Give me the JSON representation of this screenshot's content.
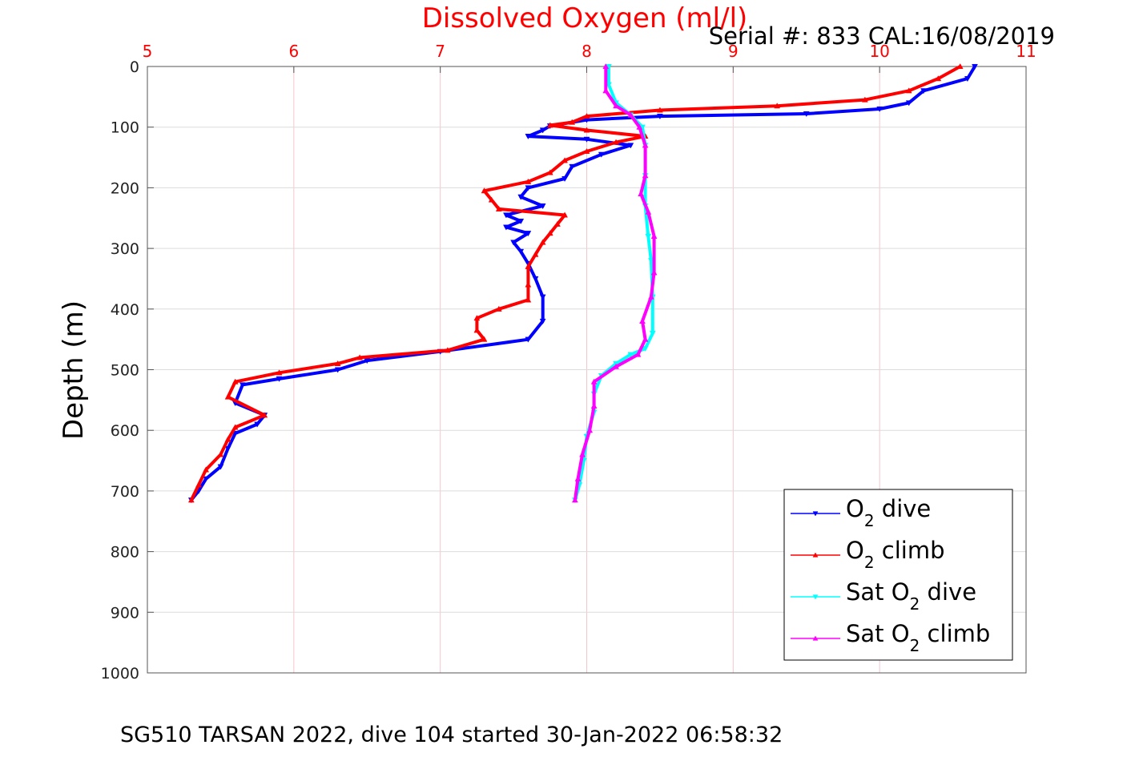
{
  "chart_data": {
    "type": "line",
    "title": "Dissolved Oxygen (ml/l)",
    "serial_text": "Serial #: 833  CAL:16/08/2019",
    "ylabel": "Depth (m)",
    "caption": "SG510 TARSAN 2022, dive 104 started 30-Jan-2022 06:58:32",
    "xlim": [
      5,
      11
    ],
    "ylim": [
      0,
      1000
    ],
    "y_reversed": true,
    "x_axis_position": "top",
    "grid": true,
    "legend_position": "bottom-right",
    "x_ticks": [
      "5",
      "6",
      "7",
      "8",
      "9",
      "10",
      "11"
    ],
    "y_ticks": [
      "0",
      "100",
      "200",
      "300",
      "400",
      "500",
      "600",
      "700",
      "800",
      "900",
      "1000"
    ],
    "series": [
      {
        "name_main": "O",
        "name_sub": "2",
        "name_tail": " dive",
        "color": "#0000ff",
        "marker": "down-triangle",
        "points": [
          [
            10.65,
            0
          ],
          [
            10.6,
            20
          ],
          [
            10.3,
            40
          ],
          [
            10.2,
            60
          ],
          [
            10.0,
            70
          ],
          [
            9.5,
            78
          ],
          [
            8.5,
            82
          ],
          [
            8.0,
            88
          ],
          [
            7.75,
            98
          ],
          [
            7.7,
            105
          ],
          [
            7.6,
            115
          ],
          [
            8.0,
            120
          ],
          [
            8.3,
            130
          ],
          [
            8.1,
            145
          ],
          [
            7.9,
            165
          ],
          [
            7.85,
            185
          ],
          [
            7.6,
            200
          ],
          [
            7.55,
            215
          ],
          [
            7.7,
            230
          ],
          [
            7.45,
            245
          ],
          [
            7.55,
            255
          ],
          [
            7.45,
            265
          ],
          [
            7.6,
            275
          ],
          [
            7.5,
            290
          ],
          [
            7.55,
            305
          ],
          [
            7.6,
            325
          ],
          [
            7.65,
            350
          ],
          [
            7.7,
            380
          ],
          [
            7.7,
            420
          ],
          [
            7.6,
            450
          ],
          [
            7.0,
            470
          ],
          [
            6.5,
            485
          ],
          [
            6.3,
            500
          ],
          [
            5.9,
            515
          ],
          [
            5.65,
            525
          ],
          [
            5.6,
            555
          ],
          [
            5.8,
            575
          ],
          [
            5.75,
            590
          ],
          [
            5.6,
            605
          ],
          [
            5.55,
            630
          ],
          [
            5.5,
            660
          ],
          [
            5.4,
            680
          ],
          [
            5.35,
            700
          ],
          [
            5.3,
            715
          ]
        ]
      },
      {
        "name_main": "O",
        "name_sub": "2",
        "name_tail": " climb",
        "color": "#ff0000",
        "marker": "up-triangle",
        "points": [
          [
            10.55,
            0
          ],
          [
            10.4,
            20
          ],
          [
            10.2,
            40
          ],
          [
            9.9,
            55
          ],
          [
            9.3,
            65
          ],
          [
            8.5,
            72
          ],
          [
            8.0,
            82
          ],
          [
            7.9,
            92
          ],
          [
            7.75,
            97
          ],
          [
            8.0,
            105
          ],
          [
            8.4,
            115
          ],
          [
            8.2,
            125
          ],
          [
            8.0,
            140
          ],
          [
            7.85,
            155
          ],
          [
            7.75,
            175
          ],
          [
            7.6,
            190
          ],
          [
            7.3,
            205
          ],
          [
            7.35,
            220
          ],
          [
            7.4,
            235
          ],
          [
            7.85,
            245
          ],
          [
            7.8,
            260
          ],
          [
            7.75,
            275
          ],
          [
            7.7,
            290
          ],
          [
            7.65,
            310
          ],
          [
            7.6,
            330
          ],
          [
            7.6,
            360
          ],
          [
            7.6,
            385
          ],
          [
            7.4,
            400
          ],
          [
            7.25,
            415
          ],
          [
            7.25,
            435
          ],
          [
            7.3,
            450
          ],
          [
            7.05,
            468
          ],
          [
            6.45,
            480
          ],
          [
            6.3,
            490
          ],
          [
            5.9,
            505
          ],
          [
            5.6,
            520
          ],
          [
            5.55,
            545
          ],
          [
            5.8,
            575
          ],
          [
            5.6,
            595
          ],
          [
            5.55,
            615
          ],
          [
            5.5,
            640
          ],
          [
            5.4,
            665
          ],
          [
            5.35,
            690
          ],
          [
            5.3,
            715
          ]
        ]
      },
      {
        "name_main": "Sat O",
        "name_sub": "2",
        "name_tail": " dive",
        "color": "#00ffff",
        "marker": "down-triangle",
        "points": [
          [
            8.15,
            0
          ],
          [
            8.15,
            30
          ],
          [
            8.2,
            60
          ],
          [
            8.3,
            80
          ],
          [
            8.38,
            100
          ],
          [
            8.4,
            130
          ],
          [
            8.4,
            180
          ],
          [
            8.4,
            230
          ],
          [
            8.42,
            280
          ],
          [
            8.44,
            320
          ],
          [
            8.45,
            380
          ],
          [
            8.45,
            440
          ],
          [
            8.4,
            465
          ],
          [
            8.3,
            475
          ],
          [
            8.2,
            490
          ],
          [
            8.1,
            510
          ],
          [
            8.05,
            540
          ],
          [
            8.05,
            570
          ],
          [
            8.0,
            610
          ],
          [
            7.98,
            650
          ],
          [
            7.95,
            690
          ],
          [
            7.92,
            715
          ]
        ]
      },
      {
        "name_main": "Sat O",
        "name_sub": "2",
        "name_tail": " climb",
        "color": "#ff00ff",
        "marker": "up-triangle",
        "points": [
          [
            8.13,
            0
          ],
          [
            8.13,
            40
          ],
          [
            8.2,
            65
          ],
          [
            8.3,
            80
          ],
          [
            8.36,
            100
          ],
          [
            8.4,
            130
          ],
          [
            8.4,
            180
          ],
          [
            8.37,
            210
          ],
          [
            8.42,
            240
          ],
          [
            8.46,
            280
          ],
          [
            8.46,
            340
          ],
          [
            8.44,
            380
          ],
          [
            8.38,
            420
          ],
          [
            8.4,
            450
          ],
          [
            8.35,
            475
          ],
          [
            8.2,
            495
          ],
          [
            8.05,
            520
          ],
          [
            8.05,
            560
          ],
          [
            8.02,
            600
          ],
          [
            7.97,
            640
          ],
          [
            7.94,
            680
          ],
          [
            7.92,
            715
          ]
        ]
      }
    ]
  }
}
